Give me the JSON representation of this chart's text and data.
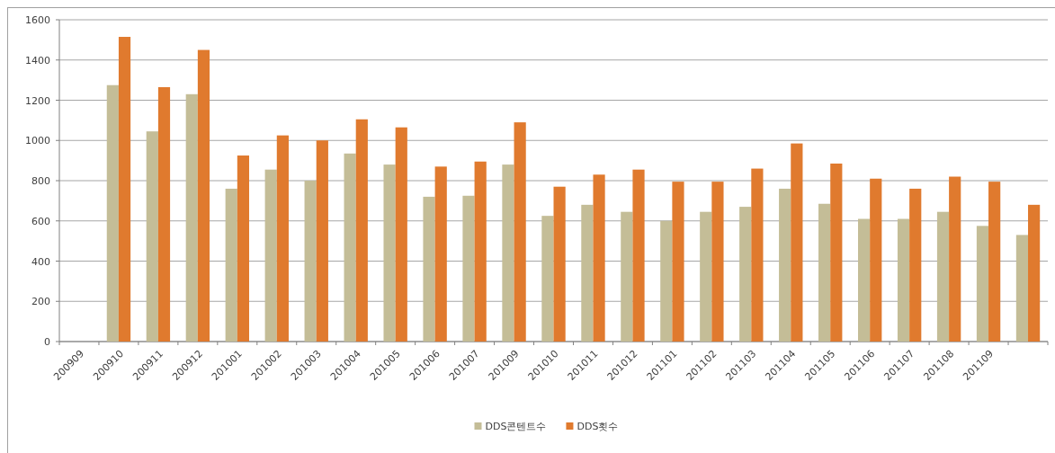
{
  "chart_data": {
    "type": "bar",
    "categories": [
      "200909",
      "200910",
      "200911",
      "200912",
      "201001",
      "201002",
      "201003",
      "201004",
      "201005",
      "201006",
      "201007",
      "201009",
      "201010",
      "201011",
      "201012",
      "201101",
      "201102",
      "201103",
      "201104",
      "201105",
      "201106",
      "201107",
      "201108",
      "201109",
      null
    ],
    "series": [
      {
        "name": "DDS콘텐트수",
        "color": "#c4bd97",
        "values": [
          null,
          1275,
          1045,
          1230,
          760,
          855,
          800,
          935,
          880,
          720,
          725,
          880,
          625,
          680,
          645,
          600,
          645,
          670,
          760,
          685,
          610,
          610,
          645,
          575,
          530
        ]
      },
      {
        "name": "DDS횟수",
        "color": "#e07a2e",
        "values": [
          null,
          1515,
          1265,
          1450,
          925,
          1025,
          1000,
          1105,
          1065,
          870,
          895,
          1090,
          770,
          830,
          855,
          795,
          795,
          860,
          985,
          885,
          810,
          760,
          820,
          795,
          680
        ]
      }
    ],
    "ylim": [
      0,
      1600
    ],
    "yticks": [
      0,
      200,
      400,
      600,
      800,
      1000,
      1200,
      1400,
      1600
    ],
    "grid": "y",
    "legend": "bottom"
  }
}
